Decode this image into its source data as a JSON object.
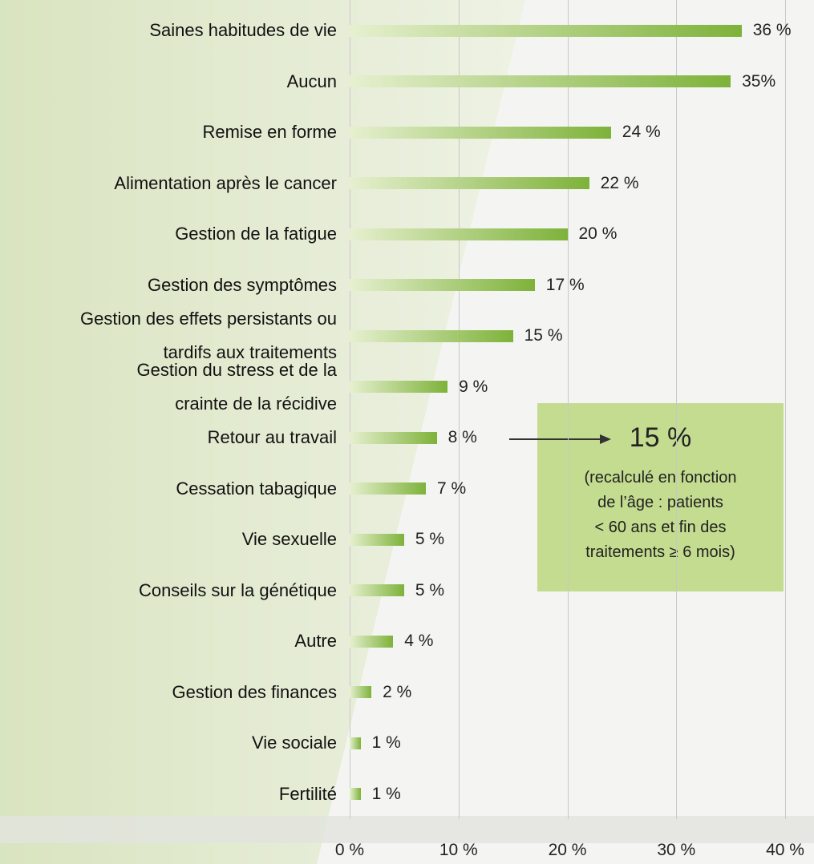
{
  "chart_data": {
    "type": "bar",
    "orientation": "horizontal",
    "categories": [
      "Saines habitudes de vie",
      "Aucun",
      "Remise en forme",
      "Alimentation après le cancer",
      "Gestion de la fatigue",
      "Gestion des symptômes",
      "Gestion des effets persistants ou\ntardifs aux traitements",
      "Gestion du stress et de la\ncrainte de la récidive",
      "Retour au travail",
      "Cessation tabagique",
      "Vie sexuelle",
      "Conseils sur la génétique",
      "Autre",
      "Gestion des finances",
      "Vie sociale",
      "Fertilité"
    ],
    "values": [
      36,
      35,
      24,
      22,
      20,
      17,
      15,
      9,
      8,
      7,
      5,
      5,
      4,
      2,
      1,
      1
    ],
    "value_labels": [
      "36 %",
      "35%",
      "24 %",
      "22 %",
      "20 %",
      "17 %",
      "15 %",
      "9 %",
      "8 %",
      "7 %",
      "5 %",
      "5 %",
      "4 %",
      "2 %",
      "1 %",
      "1 %"
    ],
    "color": "#7eb23a",
    "xlim": [
      0,
      40
    ],
    "xticks": [
      {
        "value": 0,
        "label": "0 %"
      },
      {
        "value": 10,
        "label": "10 %"
      },
      {
        "value": 20,
        "label": "20 %"
      },
      {
        "value": 30,
        "label": "30 %"
      },
      {
        "value": 40,
        "label": "40 %"
      }
    ],
    "grid": true,
    "annotation": {
      "value": "15 %",
      "note": "(recalculé en fonction\nde l’âge : patients\n< 60 ans et fin des\ntraitements ≥ 6 mois)"
    }
  }
}
